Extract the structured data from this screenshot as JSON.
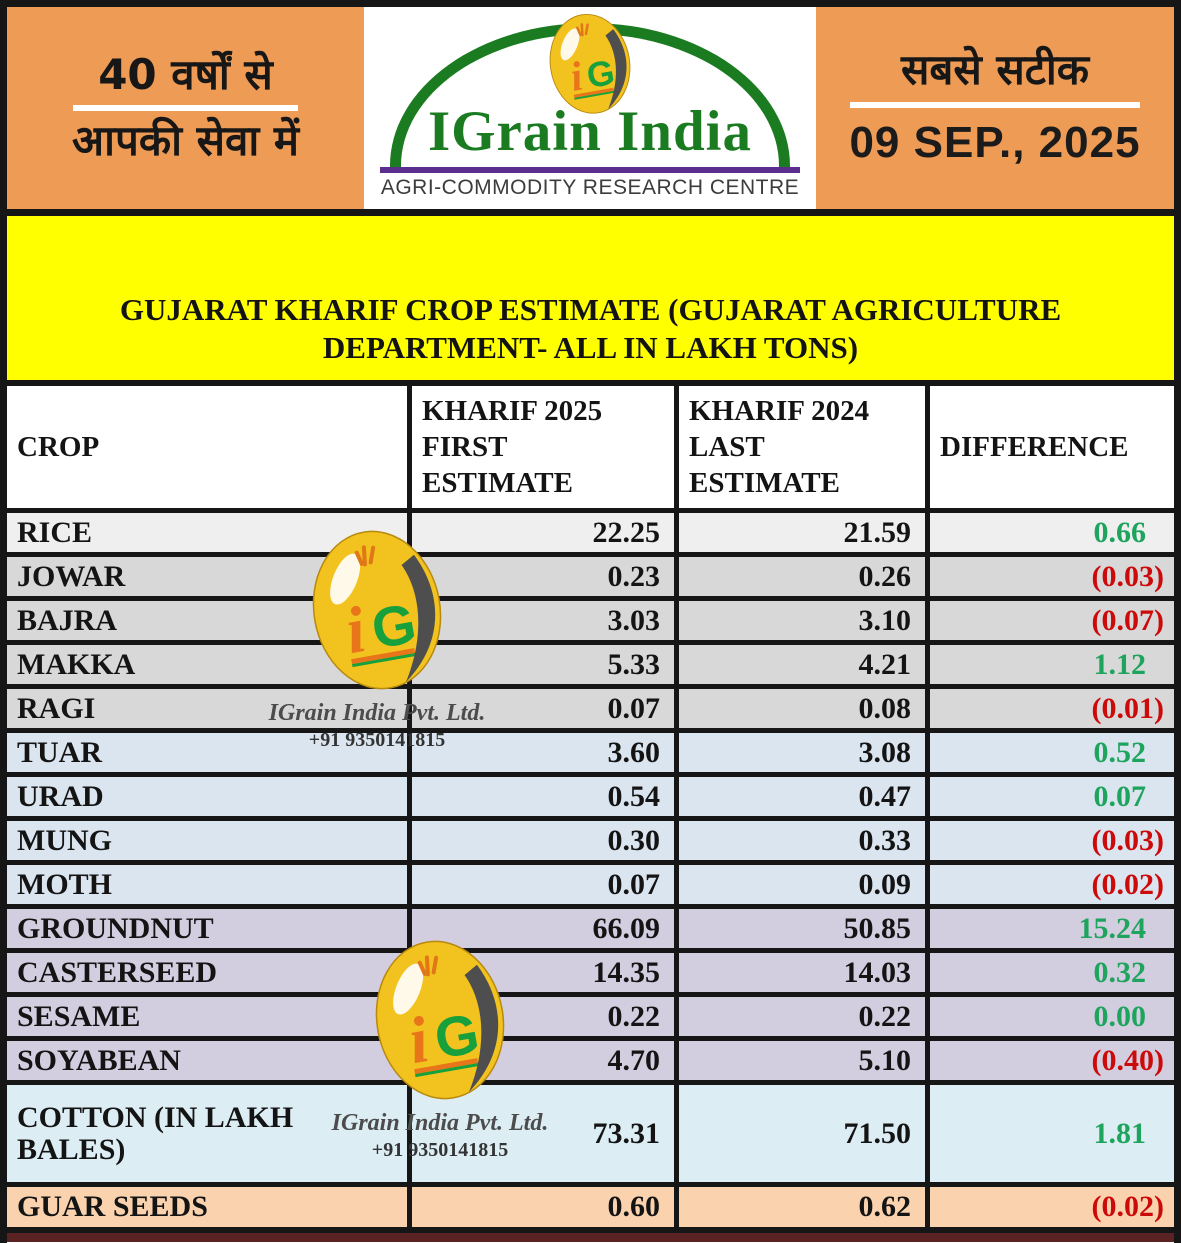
{
  "header": {
    "left_panel": {
      "line1": "40 वर्षों से",
      "line2": "आपकी सेवा में"
    },
    "logo": {
      "brand": "IGrain India",
      "tagline": "AGRI-COMMODITY RESEARCH CENTRE",
      "monogram_i": "i",
      "monogram_g": "G"
    },
    "right_panel": {
      "slogan": "सबसे सटीक",
      "date": "09 SEP., 2025"
    }
  },
  "title": {
    "text": "GUJARAT KHARIF CROP ESTIMATE (GUJARAT AGRICULTURE DEPARTMENT- ALL IN LAKH TONS)"
  },
  "table": {
    "columns": [
      "CROP",
      "KHARIF 2025 FIRST ESTIMATE",
      "KHARIF 2024 LAST ESTIMATE",
      "DIFFERENCE"
    ],
    "rows": [
      {
        "crop": "RICE",
        "kharif_2025": "22.25",
        "kharif_2024": "21.59",
        "difference": "0.66",
        "trend": "up",
        "bg": "#efefef"
      },
      {
        "crop": "JOWAR",
        "kharif_2025": "0.23",
        "kharif_2024": "0.26",
        "difference": "(0.03)",
        "trend": "down",
        "bg": "#d8d8d8"
      },
      {
        "crop": "BAJRA",
        "kharif_2025": "3.03",
        "kharif_2024": "3.10",
        "difference": "(0.07)",
        "trend": "down",
        "bg": "#d8d8d8"
      },
      {
        "crop": "MAKKA",
        "kharif_2025": "5.33",
        "kharif_2024": "4.21",
        "difference": "1.12",
        "trend": "up",
        "bg": "#d8d8d8"
      },
      {
        "crop": "RAGI",
        "kharif_2025": "0.07",
        "kharif_2024": "0.08",
        "difference": "(0.01)",
        "trend": "down",
        "bg": "#d8d8d8"
      },
      {
        "crop": "TUAR",
        "kharif_2025": "3.60",
        "kharif_2024": "3.08",
        "difference": "0.52",
        "trend": "up",
        "bg": "#dbe5f0"
      },
      {
        "crop": "URAD",
        "kharif_2025": "0.54",
        "kharif_2024": "0.47",
        "difference": "0.07",
        "trend": "up",
        "bg": "#dbe5f0"
      },
      {
        "crop": "MUNG",
        "kharif_2025": "0.30",
        "kharif_2024": "0.33",
        "difference": "(0.03)",
        "trend": "down",
        "bg": "#dbe5f0"
      },
      {
        "crop": "MOTH",
        "kharif_2025": "0.07",
        "kharif_2024": "0.09",
        "difference": "(0.02)",
        "trend": "down",
        "bg": "#dbe5f0"
      },
      {
        "crop": "GROUNDNUT",
        "kharif_2025": "66.09",
        "kharif_2024": "50.85",
        "difference": "15.24",
        "trend": "up",
        "bg": "#d3cde0"
      },
      {
        "crop": "CASTERSEED",
        "kharif_2025": "14.35",
        "kharif_2024": "14.03",
        "difference": "0.32",
        "trend": "up",
        "bg": "#d3cde0"
      },
      {
        "crop": "SESAME",
        "kharif_2025": "0.22",
        "kharif_2024": "0.22",
        "difference": "0.00",
        "trend": "up",
        "bg": "#d3cde0"
      },
      {
        "crop": "SOYABEAN",
        "kharif_2025": "4.70",
        "kharif_2024": "5.10",
        "difference": "(0.40)",
        "trend": "down",
        "bg": "#d3cde0"
      },
      {
        "crop": "COTTON (IN LAKH BALES)",
        "kharif_2025": "73.31",
        "kharif_2024": "71.50",
        "difference": "1.81",
        "trend": "up",
        "bg": "#dcedf4"
      },
      {
        "crop": "GUAR SEEDS",
        "kharif_2025": "0.60",
        "kharif_2024": "0.62",
        "difference": "(0.02)",
        "trend": "down",
        "bg": "#fad2ae"
      }
    ]
  },
  "watermark": {
    "company": "IGrain India Pvt. Ltd.",
    "phone": "+91 9350141815"
  },
  "colors": {
    "orange": "#EE9B55",
    "yellow": "#FFFF00",
    "brand_green": "#1B7B21",
    "purple_rule": "#5B2D8E",
    "gold": "#F2C21E",
    "positive": "#1FA45E",
    "negative": "#CC0A0A"
  }
}
